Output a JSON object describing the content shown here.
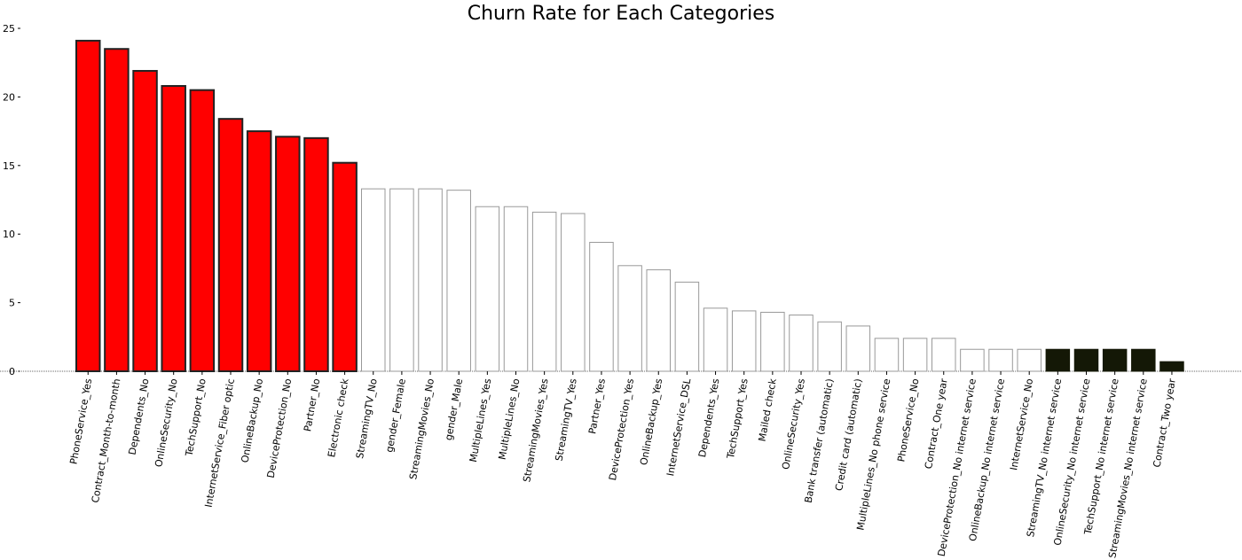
{
  "chart_data": {
    "type": "bar",
    "title": "Churn Rate for Each Categories",
    "xlabel": "",
    "ylabel": "",
    "ylim": [
      0,
      25
    ],
    "yticks": [
      0,
      5,
      10,
      15,
      20,
      25
    ],
    "grid": false,
    "legend": "none",
    "colors": {
      "high": "#ff0000",
      "medium": "#ffffff",
      "low": "#141806",
      "high_edge": "#222222",
      "medium_edge": "#999999",
      "low_edge": "#141806"
    },
    "categories": [
      "PhoneService_Yes",
      "Contract_Month-to-month",
      "Dependents_No",
      "OnlineSecurity_No",
      "TechSupport_No",
      "InternetService_Fiber optic",
      "OnlineBackup_No",
      "DeviceProtection_No",
      "Partner_No",
      "Electronic check",
      "StreamingTV_No",
      "gender_Female",
      "StreamingMovies_No",
      "gender_Male",
      "MultipleLines_Yes",
      "MultipleLines_No",
      "StreamingMovies_Yes",
      "StreamingTV_Yes",
      "Partner_Yes",
      "DeviceProtection_Yes",
      "OnlineBackup_Yes",
      "InternetService_DSL",
      "Dependents_Yes",
      "TechSupport_Yes",
      "Mailed check",
      "OnlineSecurity_Yes",
      "Bank transfer (automatic)",
      "Credit card (automatic)",
      "MultipleLines_No phone service",
      "PhoneService_No",
      "Contract_One year",
      "DeviceProtection_No internet service",
      "OnlineBackup_No internet service",
      "InternetService_No",
      "StreamingTV_No internet service",
      "OnlineSecurity_No internet service",
      "TechSupport_No internet service",
      "StreamingMovies_No internet service",
      "Contract_Two year"
    ],
    "values": [
      24.1,
      23.5,
      21.9,
      20.8,
      20.5,
      18.4,
      17.5,
      17.1,
      17.0,
      15.2,
      13.3,
      13.3,
      13.3,
      13.2,
      12.0,
      12.0,
      11.6,
      11.5,
      9.4,
      7.7,
      7.4,
      6.5,
      4.6,
      4.4,
      4.3,
      4.1,
      3.6,
      3.3,
      2.4,
      2.4,
      2.4,
      1.6,
      1.6,
      1.6,
      1.6,
      1.6,
      1.6,
      1.6,
      0.7
    ],
    "groups": [
      "high",
      "high",
      "high",
      "high",
      "high",
      "high",
      "high",
      "high",
      "high",
      "high",
      "medium",
      "medium",
      "medium",
      "medium",
      "medium",
      "medium",
      "medium",
      "medium",
      "medium",
      "medium",
      "medium",
      "medium",
      "medium",
      "medium",
      "medium",
      "medium",
      "medium",
      "medium",
      "medium",
      "medium",
      "medium",
      "medium",
      "medium",
      "medium",
      "low",
      "low",
      "low",
      "low",
      "low"
    ]
  }
}
